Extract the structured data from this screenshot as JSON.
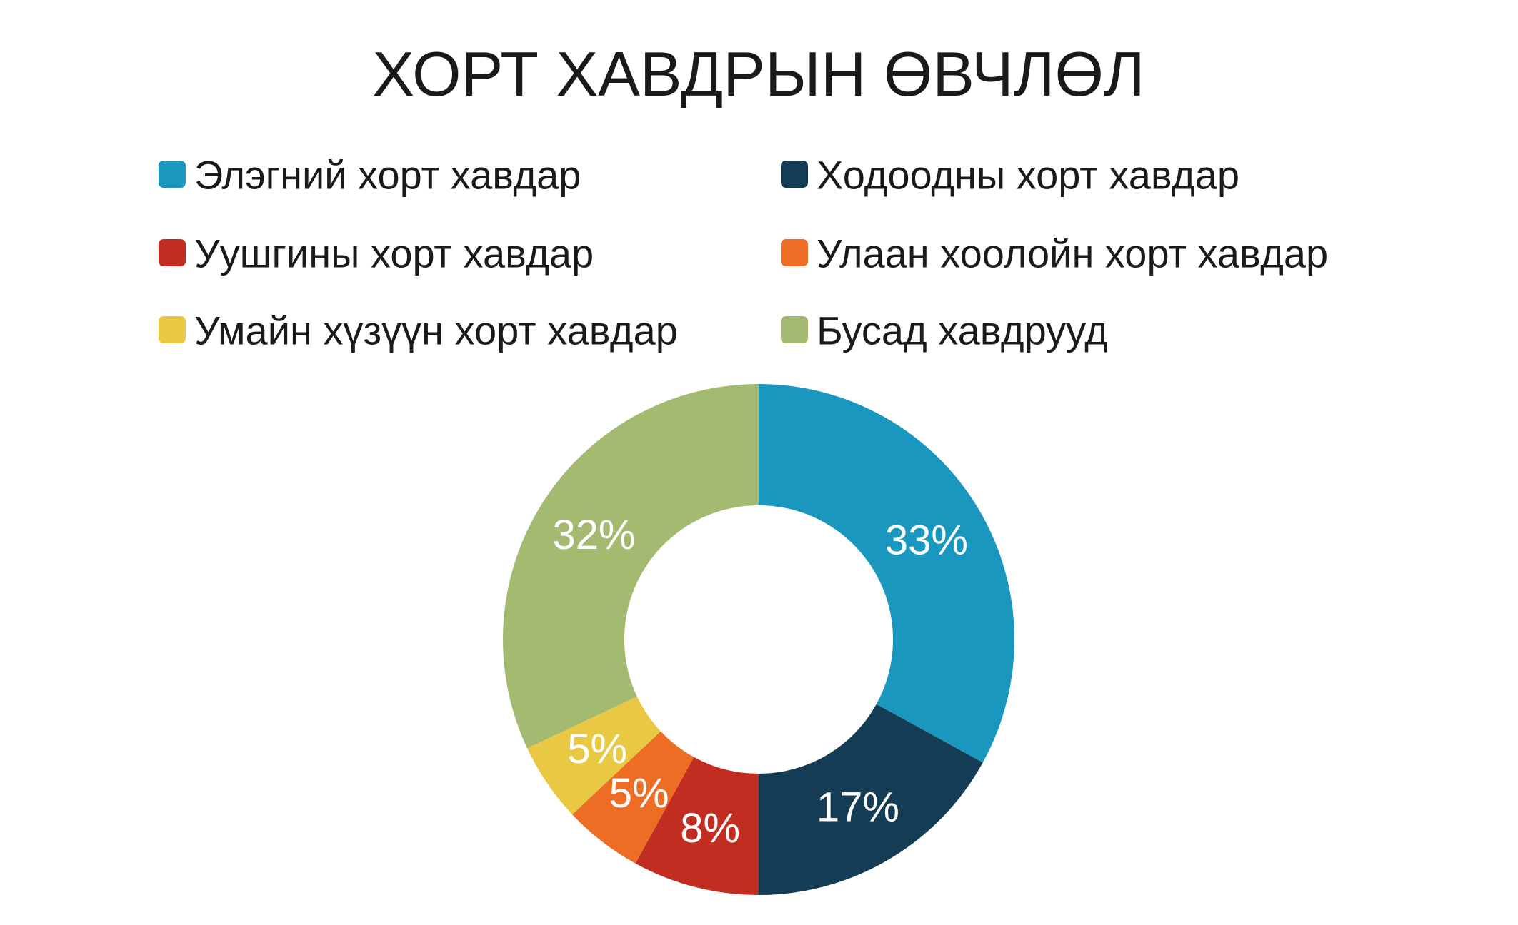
{
  "chart_data": {
    "type": "pie",
    "variant": "donut",
    "title": "ХОРТ ХАВДРЫН ӨВЧЛӨЛ",
    "legend_position": "top",
    "categories": [
      "Элэгний хорт хавдар",
      "Ходоодны хорт хавдар",
      "Уушгины хорт хавдар",
      "Улаан хоолойн хорт хавдар",
      "Умайн хүзүүн хорт хавдар",
      "Бусад хавдрууд"
    ],
    "values": [
      33,
      17,
      8,
      5,
      5,
      32
    ],
    "labels": [
      "33%",
      "17%",
      "8%",
      "5%",
      "5%",
      "32%"
    ],
    "unit": "%",
    "colors": [
      "#1997BE",
      "#143D55",
      "#C22D21",
      "#EE6D24",
      "#E9C944",
      "#A5BA71"
    ]
  }
}
